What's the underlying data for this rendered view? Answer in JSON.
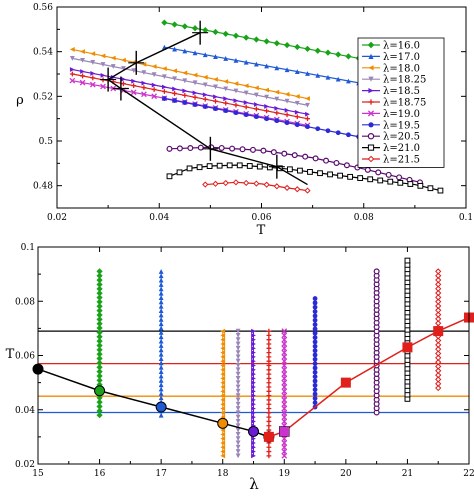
{
  "chart_data": [
    {
      "type": "line",
      "xlabel": "T",
      "ylabel": "ρ",
      "xlim": [
        0.02,
        0.1
      ],
      "ylim": [
        0.47,
        0.56
      ],
      "x_ticks": [
        "0.02",
        "0.04",
        "0.06",
        "0.08",
        "0.1"
      ],
      "y_ticks": [
        "0.48",
        "0.5",
        "0.52",
        "0.54",
        "0.56"
      ],
      "grid": false,
      "legend_position": "right",
      "series": [
        {
          "name": "λ=16.0",
          "color": "#1aa31a",
          "marker": "diamond",
          "x": [
            0.041,
            0.091
          ],
          "y": [
            0.553,
            0.532
          ]
        },
        {
          "name": "λ=17.0",
          "color": "#1f5ad6",
          "marker": "triangle-up",
          "x": [
            0.041,
            0.091
          ],
          "y": [
            0.542,
            0.521
          ]
        },
        {
          "name": "λ=18.0",
          "color": "#f08c00",
          "marker": "triangle-left",
          "x": [
            0.023,
            0.069
          ],
          "y": [
            0.541,
            0.519
          ]
        },
        {
          "name": "λ=18.25",
          "color": "#9a85b8",
          "marker": "triangle-down",
          "x": [
            0.023,
            0.069
          ],
          "y": [
            0.537,
            0.516
          ]
        },
        {
          "name": "λ=18.5",
          "color": "#6a1bd6",
          "marker": "triangle-right",
          "x": [
            0.023,
            0.069
          ],
          "y": [
            0.532,
            0.512
          ]
        },
        {
          "name": "λ=18.75",
          "color": "#e0201b",
          "marker": "plus",
          "x": [
            0.023,
            0.069
          ],
          "y": [
            0.53,
            0.51
          ]
        },
        {
          "name": "λ=19.0",
          "color": "#cc33cc",
          "marker": "x",
          "x": [
            0.023,
            0.069
          ],
          "y": [
            0.527,
            0.507
          ]
        },
        {
          "name": "λ=19.5",
          "color": "#2b2bd6",
          "marker": "circle-filled",
          "x": [
            0.041,
            0.081
          ],
          "y": [
            0.519,
            0.501
          ]
        },
        {
          "name": "λ=20.5",
          "color": "#5a0a6e",
          "marker": "circle-open",
          "x": [
            0.042,
            0.05,
            0.06,
            0.07,
            0.08,
            0.091
          ],
          "y": [
            0.4965,
            0.4972,
            0.4958,
            0.4925,
            0.4875,
            0.4815
          ]
        },
        {
          "name": "λ=21.0",
          "color": "#000000",
          "marker": "square-open",
          "x": [
            0.042,
            0.046,
            0.05,
            0.055,
            0.06,
            0.065,
            0.07,
            0.08,
            0.09,
            0.095
          ],
          "y": [
            0.4842,
            0.4878,
            0.4888,
            0.4892,
            0.4885,
            0.4875,
            0.486,
            0.4832,
            0.4805,
            0.4778
          ]
        },
        {
          "name": "λ=21.5",
          "color": "#e01b1b",
          "marker": "diamond-open",
          "x": [
            0.049,
            0.055,
            0.06,
            0.065,
            0.069
          ],
          "y": [
            0.4805,
            0.4815,
            0.4808,
            0.479,
            0.4778
          ]
        }
      ],
      "annotations": [
        {
          "kind": "connecting-line",
          "color": "#000000",
          "x": [
            0.048,
            0.0355,
            0.03,
            0.0325,
            0.05,
            0.063,
            0.069
          ],
          "y": [
            0.5485,
            0.535,
            0.5275,
            0.5235,
            0.4965,
            0.4885,
            0.4805
          ]
        },
        {
          "kind": "error-bars",
          "color": "#000000",
          "x": [
            0.048,
            0.0355,
            0.03,
            0.0325,
            0.05,
            0.063
          ],
          "y": [
            0.5485,
            0.535,
            0.5275,
            0.5235,
            0.4965,
            0.4885
          ]
        }
      ]
    },
    {
      "type": "line",
      "xlabel": "λ",
      "ylabel": "T",
      "xlim": [
        15,
        22
      ],
      "ylim": [
        0.02,
        0.1
      ],
      "x_ticks": [
        "15",
        "16",
        "17",
        "18",
        "19",
        "20",
        "21",
        "22"
      ],
      "y_ticks": [
        "0.02",
        "0.04",
        "0.06",
        "0.08",
        "0.1"
      ],
      "grid": false,
      "horizontal_lines": [
        {
          "y": 0.069,
          "color": "#000000"
        },
        {
          "y": 0.057,
          "color": "#e0201b"
        },
        {
          "y": 0.045,
          "color": "#f08c00"
        },
        {
          "y": 0.039,
          "color": "#1f5ad6"
        }
      ],
      "vertical_columns": [
        {
          "x": 16.0,
          "ymin": 0.038,
          "ymax": 0.091,
          "color": "#1aa31a",
          "marker": "diamond"
        },
        {
          "x": 17.0,
          "ymin": 0.038,
          "ymax": 0.091,
          "color": "#1f5ad6",
          "marker": "triangle-up"
        },
        {
          "x": 18.0,
          "ymin": 0.023,
          "ymax": 0.069,
          "color": "#f08c00",
          "marker": "triangle-left"
        },
        {
          "x": 18.25,
          "ymin": 0.023,
          "ymax": 0.069,
          "color": "#9a85b8",
          "marker": "triangle-down"
        },
        {
          "x": 18.5,
          "ymin": 0.023,
          "ymax": 0.069,
          "color": "#6a1bd6",
          "marker": "triangle-right"
        },
        {
          "x": 18.75,
          "ymin": 0.023,
          "ymax": 0.069,
          "color": "#e0201b",
          "marker": "plus"
        },
        {
          "x": 19.0,
          "ymin": 0.023,
          "ymax": 0.069,
          "color": "#cc33cc",
          "marker": "x"
        },
        {
          "x": 19.5,
          "ymin": 0.041,
          "ymax": 0.081,
          "color": "#2b2bd6",
          "marker": "circle-filled"
        },
        {
          "x": 20.5,
          "ymin": 0.039,
          "ymax": 0.091,
          "color": "#5a0a6e",
          "marker": "circle-open"
        },
        {
          "x": 21.0,
          "ymin": 0.044,
          "ymax": 0.095,
          "color": "#000000",
          "marker": "square-open"
        },
        {
          "x": 21.5,
          "ymin": 0.048,
          "ymax": 0.091,
          "color": "#e01b1b",
          "marker": "diamond-open"
        }
      ],
      "series": [
        {
          "color": "#000000",
          "marker": "circle-filled",
          "points": [
            {
              "x": 15.0,
              "y": 0.055,
              "fill": "#000000"
            },
            {
              "x": 16.0,
              "y": 0.047,
              "fill": "#1aa31a"
            },
            {
              "x": 17.0,
              "y": 0.041,
              "fill": "#1f5ad6"
            },
            {
              "x": 18.0,
              "y": 0.035,
              "fill": "#f08c00"
            },
            {
              "x": 18.5,
              "y": 0.032,
              "fill": "#6a1bd6"
            },
            {
              "x": 18.75,
              "y": 0.03,
              "fill": "#e0201b"
            }
          ]
        },
        {
          "color": "#e0201b",
          "marker": "square-filled",
          "points": [
            {
              "x": 18.75,
              "y": 0.03,
              "fill": "#e0201b"
            },
            {
              "x": 19.0,
              "y": 0.032,
              "fill": "#cc33cc"
            },
            {
              "x": 20.0,
              "y": 0.05,
              "fill": "#e0201b"
            },
            {
              "x": 21.0,
              "y": 0.063,
              "fill": "#e0201b"
            },
            {
              "x": 21.5,
              "y": 0.069,
              "fill": "#e0201b"
            },
            {
              "x": 22.0,
              "y": 0.074,
              "fill": "#e0201b"
            }
          ]
        }
      ]
    }
  ]
}
